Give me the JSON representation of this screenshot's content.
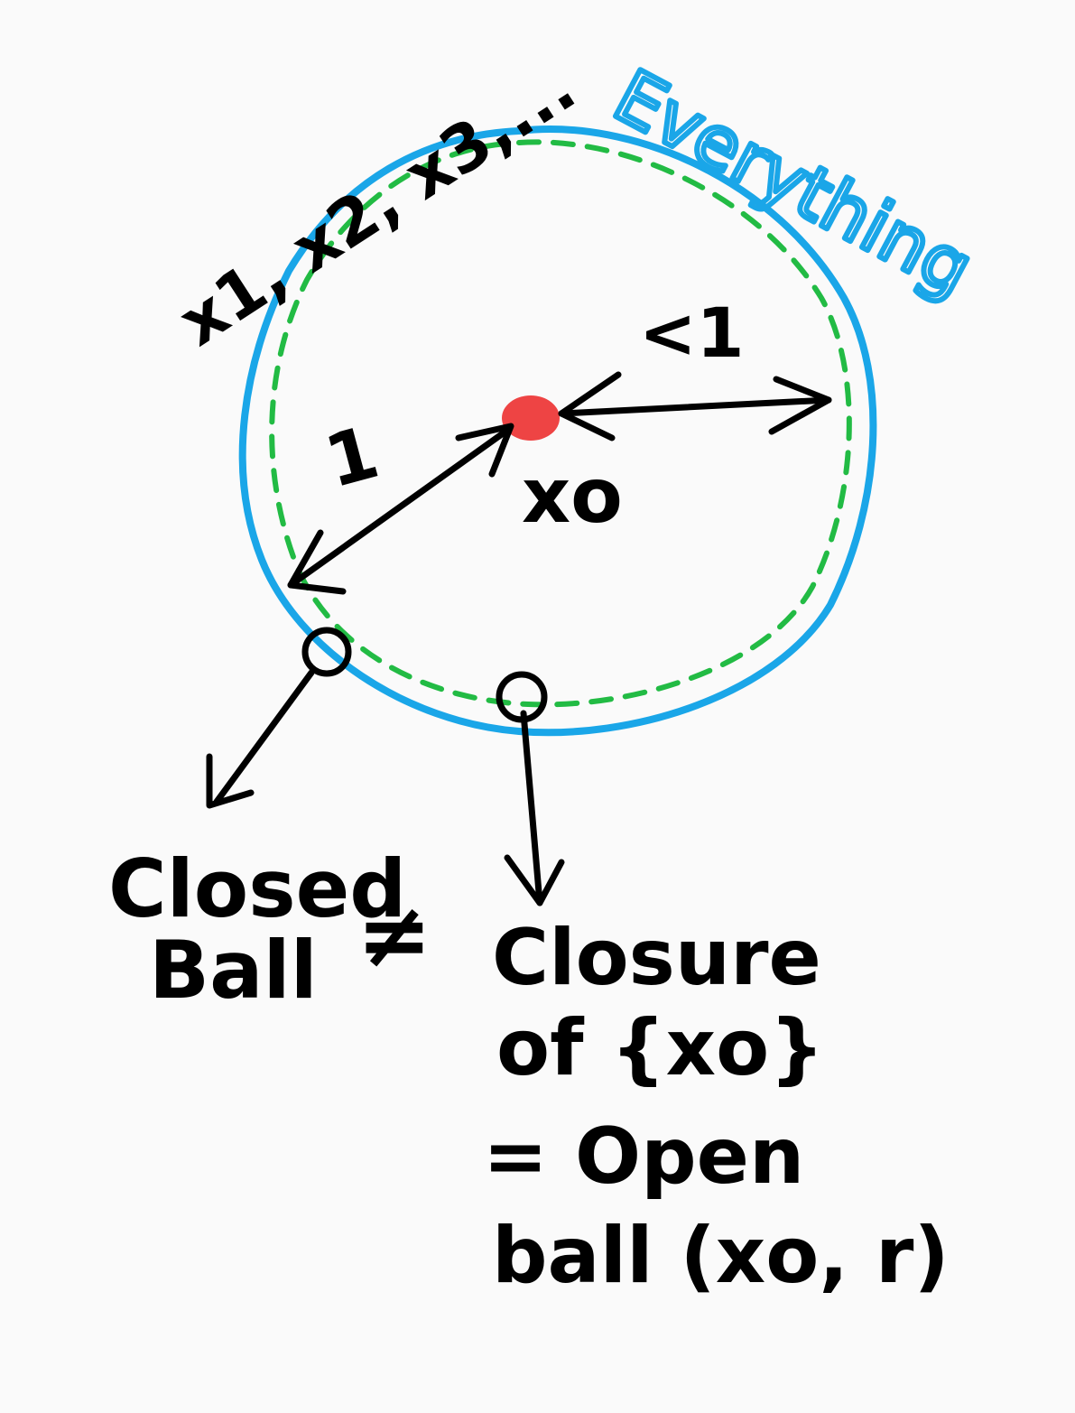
{
  "colors": {
    "background": "#fafafa",
    "ink": "#000000",
    "everything_circle": "#1aa6e8",
    "open_ball_dashed": "#22bb44",
    "center_point": "#ee4444"
  },
  "labels": {
    "sequence": "x1, x2, x3,...",
    "everything": "Everything",
    "radius_one": "1",
    "radius_less_than_one": "<1",
    "center": "xo",
    "closed_ball_line1": "Closed",
    "closed_ball_line2": "Ball",
    "not_equal": "≠",
    "closure_line1": "Closure",
    "closure_line2": "of {xo}",
    "closure_line3": "= Open",
    "closure_line4": "ball (xo, r)"
  },
  "icons": {
    "small_circle_left": "hollow-circle-icon",
    "small_circle_bottom": "hollow-circle-icon"
  }
}
